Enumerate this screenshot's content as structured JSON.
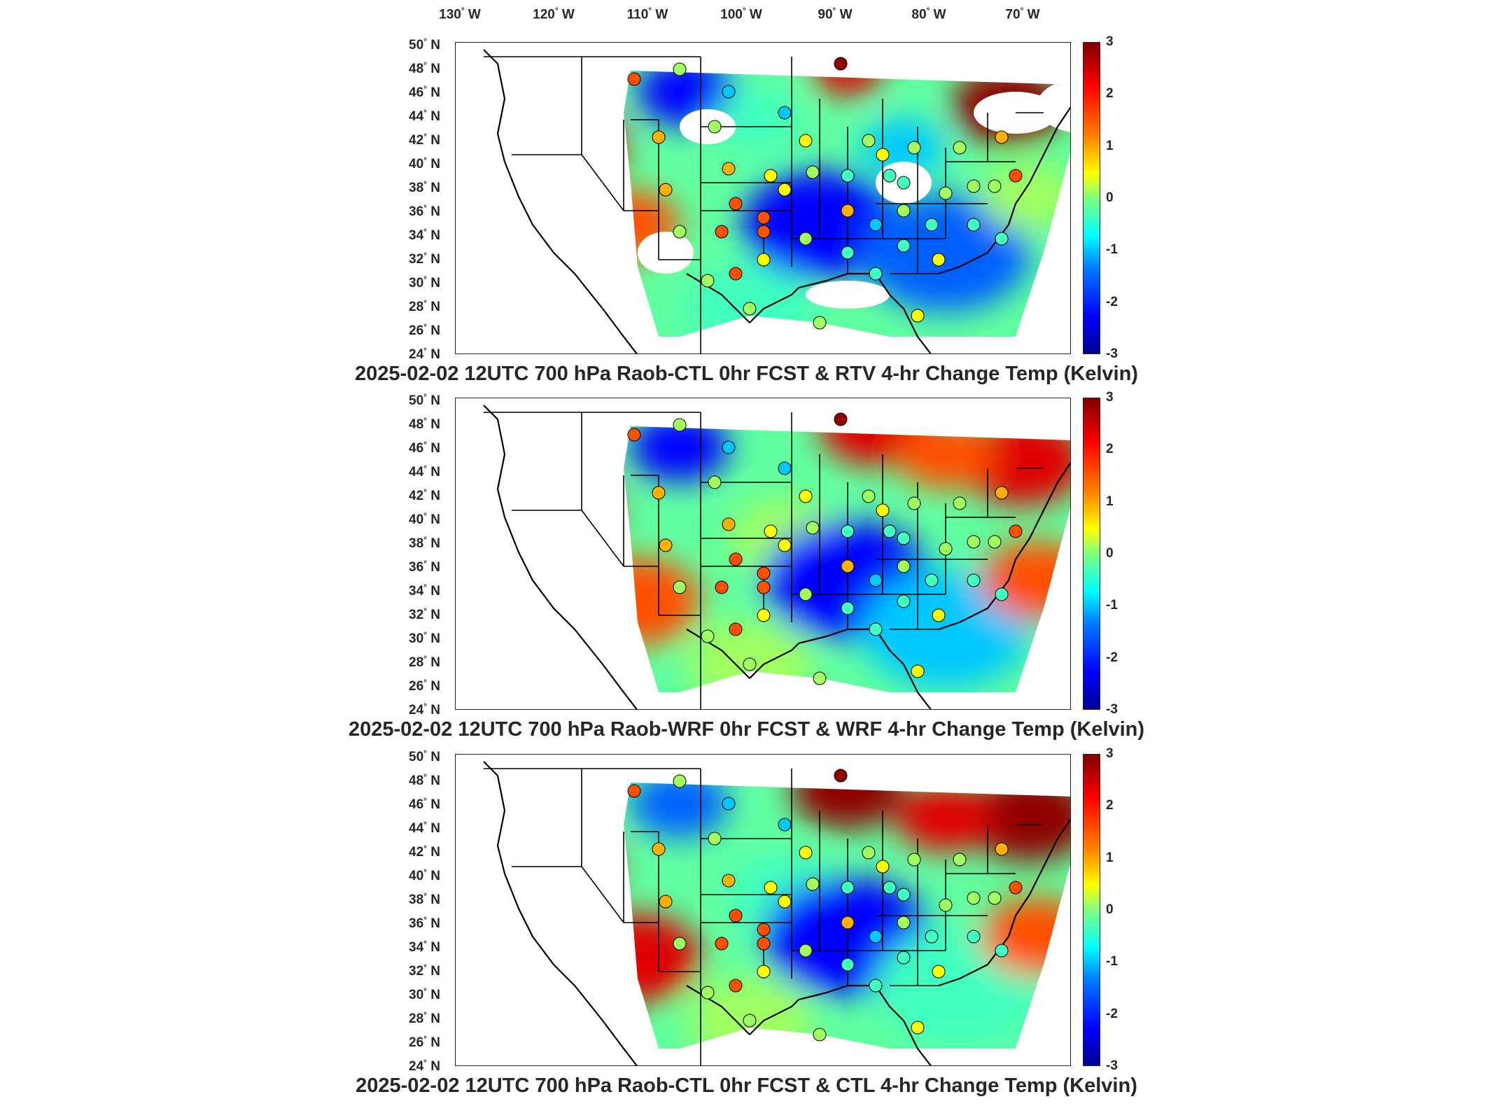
{
  "longitude_labels": [
    {
      "deg": "130",
      "dir": "W"
    },
    {
      "deg": "120",
      "dir": "W"
    },
    {
      "deg": "110",
      "dir": "W"
    },
    {
      "deg": "100",
      "dir": "W"
    },
    {
      "deg": "90",
      "dir": "W"
    },
    {
      "deg": "80",
      "dir": "W"
    },
    {
      "deg": "70",
      "dir": "W"
    }
  ],
  "latitude_labels": [
    {
      "deg": "50",
      "dir": "N"
    },
    {
      "deg": "48",
      "dir": "N"
    },
    {
      "deg": "46",
      "dir": "N"
    },
    {
      "deg": "44",
      "dir": "N"
    },
    {
      "deg": "42",
      "dir": "N"
    },
    {
      "deg": "40",
      "dir": "N"
    },
    {
      "deg": "38",
      "dir": "N"
    },
    {
      "deg": "36",
      "dir": "N"
    },
    {
      "deg": "34",
      "dir": "N"
    },
    {
      "deg": "32",
      "dir": "N"
    },
    {
      "deg": "30",
      "dir": "N"
    },
    {
      "deg": "28",
      "dir": "N"
    },
    {
      "deg": "26",
      "dir": "N"
    },
    {
      "deg": "24",
      "dir": "N"
    }
  ],
  "colorbar": {
    "ticks": [
      "3",
      "2",
      "1",
      "0",
      "-1",
      "-2",
      "-3"
    ],
    "range": [
      -3,
      3
    ],
    "colormap": "jet"
  },
  "panels": [
    {
      "caption": "2025-02-02 12UTC 700 hPa Raob-CTL 0hr FCST & RTV 4-hr Change Temp (Kelvin)"
    },
    {
      "caption": "2025-02-02 12UTC 700 hPa Raob-WRF 0hr FCST & WRF 4-hr Change Temp (Kelvin)"
    },
    {
      "caption": "2025-02-02 12UTC 700 hPa Raob-CTL 0hr FCST & CTL 4-hr Change Temp (Kelvin)"
    }
  ],
  "colors": {
    "warm": "#ff3000",
    "hot": "#b00000",
    "neutral": "#80ff80",
    "cool": "#00c8ff",
    "cold": "#0030e0",
    "outline": "#000000"
  }
}
